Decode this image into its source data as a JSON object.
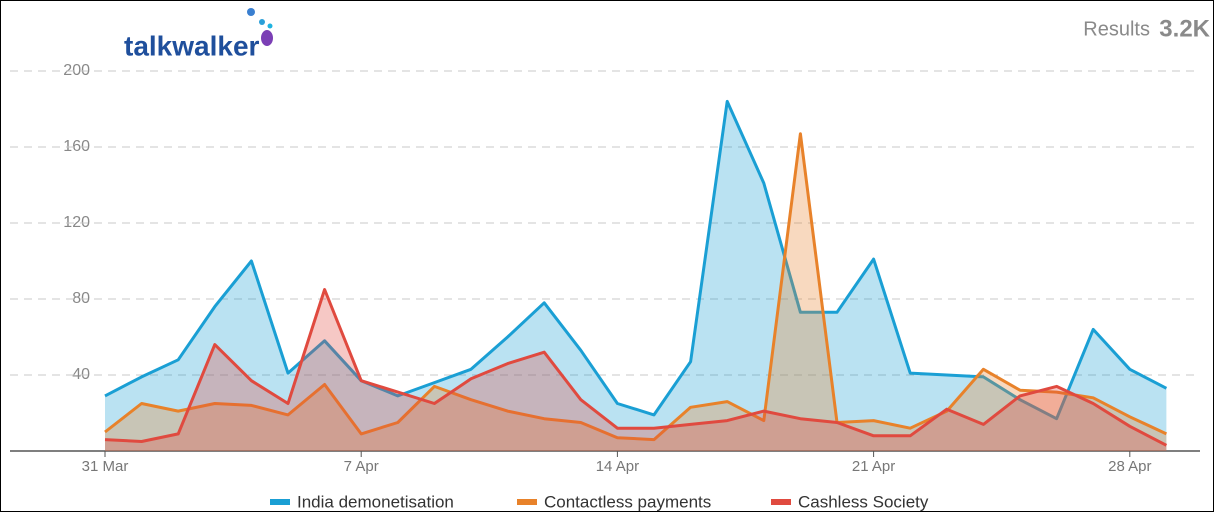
{
  "brand": "talkwalker",
  "results": {
    "label": "Results",
    "value": "3.2K"
  },
  "chart_data": {
    "type": "area",
    "categories": [
      "31 Mar",
      null,
      null,
      null,
      null,
      null,
      null,
      "7 Apr",
      null,
      null,
      null,
      null,
      null,
      null,
      "14 Apr",
      null,
      null,
      null,
      null,
      null,
      null,
      "21 Apr",
      null,
      null,
      null,
      null,
      null,
      null,
      "28 Apr",
      null
    ],
    "series": [
      {
        "name": "India demonetisation",
        "color": "#1a9fd4",
        "values": [
          29,
          39,
          48,
          76,
          100,
          41,
          58,
          37,
          29,
          36,
          43,
          60,
          78,
          53,
          25,
          19,
          47,
          184,
          141,
          73,
          73,
          101,
          41,
          40,
          39,
          27,
          17,
          64,
          43,
          33
        ]
      },
      {
        "name": "Contactless payments",
        "color": "#e8822a",
        "values": [
          10,
          25,
          21,
          25,
          24,
          19,
          35,
          9,
          15,
          34,
          27,
          21,
          17,
          15,
          7,
          6,
          23,
          26,
          16,
          167,
          15,
          16,
          12,
          21,
          43,
          32,
          31,
          28,
          18,
          9
        ]
      },
      {
        "name": "Cashless Society",
        "color": "#e04a3f",
        "values": [
          6,
          5,
          9,
          56,
          37,
          25,
          85,
          37,
          31,
          25,
          38,
          46,
          52,
          27,
          12,
          12,
          14,
          16,
          21,
          17,
          15,
          8,
          8,
          22,
          14,
          29,
          34,
          25,
          13,
          3
        ]
      }
    ],
    "ylim": [
      0,
      200
    ],
    "yticks": [
      40,
      80,
      120,
      160,
      200
    ],
    "grid": true,
    "legend": "bottom"
  }
}
